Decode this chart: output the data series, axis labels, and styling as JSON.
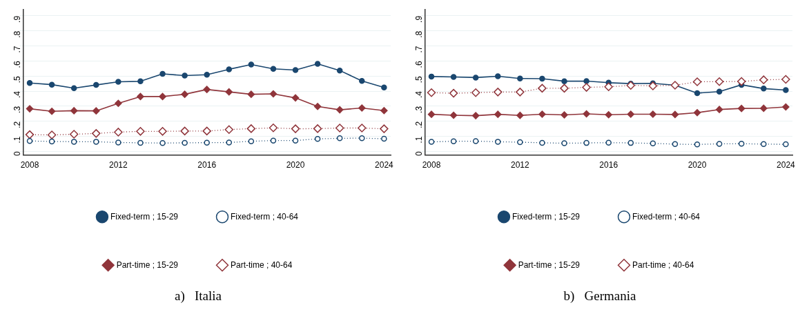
{
  "chart_data": [
    {
      "type": "line",
      "title": "a)   Italia",
      "x": [
        2008,
        2009,
        2010,
        2011,
        2012,
        2013,
        2014,
        2015,
        2016,
        2017,
        2018,
        2019,
        2020,
        2021,
        2022,
        2023,
        2024
      ],
      "xlim": [
        2007.7,
        2024.3
      ],
      "xticks": [
        2008,
        2012,
        2016,
        2020,
        2024
      ],
      "ylim": [
        -0.025,
        0.94
      ],
      "yticks": [
        {
          "value": 0,
          "label": "0"
        },
        {
          "value": 0.1,
          "label": ".1"
        },
        {
          "value": 0.2,
          "label": ".2"
        },
        {
          "value": 0.3,
          "label": ".3"
        },
        {
          "value": 0.4,
          "label": ".4"
        },
        {
          "value": 0.5,
          "label": ".5"
        },
        {
          "value": 0.6,
          "label": ".6"
        },
        {
          "value": 0.7,
          "label": ".7"
        },
        {
          "value": 0.8,
          "label": ".8"
        },
        {
          "value": 0.9,
          "label": ".9"
        }
      ],
      "grid": "y",
      "legend": "bottom",
      "series": [
        {
          "name": "Fixed-term ; 15-29",
          "color": "#1a476f",
          "marker": "circle",
          "line_style": "solid",
          "values": [
            0.454,
            0.443,
            0.42,
            0.441,
            0.462,
            0.465,
            0.515,
            0.503,
            0.509,
            0.545,
            0.577,
            0.548,
            0.54,
            0.581,
            0.537,
            0.468,
            0.424
          ]
        },
        {
          "name": "Fixed-term ; 40-64",
          "color": "#1a476f",
          "marker": "circle-open",
          "line_style": "dotted",
          "values": [
            0.069,
            0.066,
            0.064,
            0.064,
            0.059,
            0.057,
            0.055,
            0.057,
            0.058,
            0.059,
            0.067,
            0.072,
            0.072,
            0.083,
            0.087,
            0.088,
            0.084
          ]
        },
        {
          "name": "Part-time ; 15-29",
          "color": "#90353b",
          "marker": "diamond",
          "line_style": "solid",
          "values": [
            0.283,
            0.266,
            0.27,
            0.269,
            0.319,
            0.364,
            0.364,
            0.379,
            0.411,
            0.395,
            0.379,
            0.382,
            0.355,
            0.298,
            0.276,
            0.288,
            0.271
          ]
        },
        {
          "name": "Part-time ; 40-64",
          "color": "#90353b",
          "marker": "diamond-open",
          "line_style": "dotted",
          "values": [
            0.111,
            0.109,
            0.114,
            0.119,
            0.128,
            0.133,
            0.133,
            0.135,
            0.135,
            0.145,
            0.151,
            0.156,
            0.15,
            0.151,
            0.155,
            0.155,
            0.15
          ]
        }
      ]
    },
    {
      "type": "line",
      "title": "b)   Germania",
      "x": [
        2008,
        2009,
        2010,
        2011,
        2012,
        2013,
        2014,
        2015,
        2016,
        2017,
        2018,
        2019,
        2020,
        2021,
        2022,
        2023,
        2024
      ],
      "xlim": [
        2007.7,
        2024.3
      ],
      "xticks": [
        2008,
        2012,
        2016,
        2020,
        2024
      ],
      "ylim": [
        -0.025,
        0.94
      ],
      "yticks": [
        {
          "value": 0,
          "label": "0"
        },
        {
          "value": 0.1,
          "label": ".1"
        },
        {
          "value": 0.2,
          "label": ".2"
        },
        {
          "value": 0.3,
          "label": ".3"
        },
        {
          "value": 0.4,
          "label": ".4"
        },
        {
          "value": 0.5,
          "label": ".5"
        },
        {
          "value": 0.6,
          "label": ".6"
        },
        {
          "value": 0.7,
          "label": ".7"
        },
        {
          "value": 0.8,
          "label": ".8"
        },
        {
          "value": 0.9,
          "label": ".9"
        }
      ],
      "grid": "y",
      "legend": "bottom",
      "series": [
        {
          "name": "Fixed-term ; 15-29",
          "color": "#1a476f",
          "marker": "circle",
          "line_style": "solid",
          "values": [
            0.497,
            0.494,
            0.49,
            0.499,
            0.484,
            0.483,
            0.466,
            0.467,
            0.456,
            0.45,
            0.452,
            0.439,
            0.387,
            0.397,
            0.442,
            0.417,
            0.407
          ]
        },
        {
          "name": "Fixed-term ; 40-64",
          "color": "#1a476f",
          "marker": "circle-open",
          "line_style": "dotted",
          "values": [
            0.063,
            0.067,
            0.068,
            0.064,
            0.061,
            0.057,
            0.054,
            0.056,
            0.058,
            0.056,
            0.053,
            0.048,
            0.046,
            0.05,
            0.051,
            0.048,
            0.047
          ]
        },
        {
          "name": "Part-time ; 15-29",
          "color": "#90353b",
          "marker": "diamond",
          "line_style": "solid",
          "values": [
            0.246,
            0.24,
            0.237,
            0.246,
            0.239,
            0.247,
            0.242,
            0.249,
            0.243,
            0.247,
            0.247,
            0.245,
            0.257,
            0.278,
            0.285,
            0.286,
            0.295
          ]
        },
        {
          "name": "Part-time ; 40-64",
          "color": "#90353b",
          "marker": "diamond-open",
          "line_style": "dotted",
          "values": [
            0.39,
            0.386,
            0.39,
            0.394,
            0.394,
            0.419,
            0.419,
            0.425,
            0.429,
            0.438,
            0.435,
            0.439,
            0.462,
            0.463,
            0.464,
            0.475,
            0.478
          ]
        }
      ]
    }
  ]
}
